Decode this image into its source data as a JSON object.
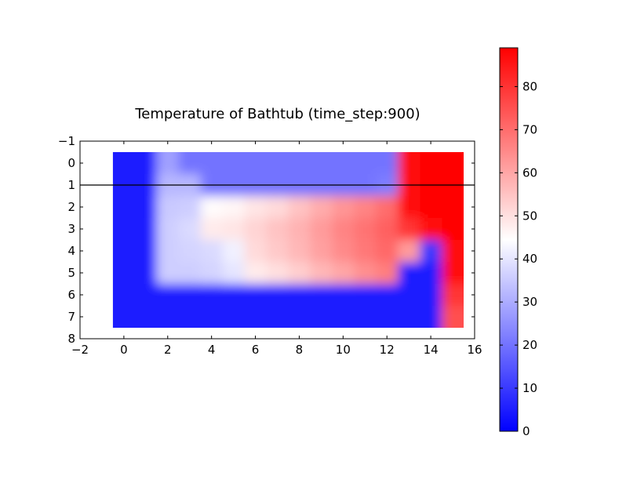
{
  "chart_data": {
    "type": "heatmap",
    "title": "Temperature of Bathtub (time_step:900)",
    "xlabel": "",
    "ylabel": "",
    "xlim": [
      -2,
      16
    ],
    "ylim": [
      8,
      -1
    ],
    "x_ticks": [
      -2,
      0,
      2,
      4,
      6,
      8,
      10,
      12,
      14,
      16
    ],
    "y_ticks": [
      -1,
      0,
      1,
      2,
      3,
      4,
      5,
      6,
      7,
      8
    ],
    "hline_y": 1,
    "grid": false,
    "colormap": {
      "name": "bwr",
      "low": "#0000ff",
      "mid": "#ffffff",
      "high": "#ff0000",
      "vmin": 0,
      "vmax": 89
    },
    "colorbar_ticks": [
      0,
      10,
      20,
      30,
      40,
      50,
      60,
      70,
      80
    ],
    "values": [
      [
        5,
        5,
        28,
        20,
        20,
        20,
        20,
        20,
        20,
        20,
        20,
        20,
        20,
        86,
        88,
        88
      ],
      [
        5,
        5,
        32,
        32,
        20,
        20,
        20,
        20,
        20,
        20,
        20,
        20,
        22,
        86,
        88,
        88
      ],
      [
        5,
        5,
        35,
        36,
        45,
        46,
        49,
        51,
        55,
        59,
        63,
        66,
        70,
        86,
        88,
        88
      ],
      [
        5,
        5,
        36,
        38,
        48,
        49,
        52,
        55,
        58,
        62,
        66,
        69,
        72,
        80,
        86,
        88
      ],
      [
        5,
        5,
        36,
        37,
        38,
        42,
        51,
        54,
        57,
        61,
        65,
        68,
        71,
        62,
        10,
        86
      ],
      [
        5,
        5,
        36,
        36,
        37,
        40,
        48,
        50,
        53,
        57,
        60,
        64,
        67,
        5,
        5,
        86
      ],
      [
        5,
        5,
        5,
        5,
        5,
        5,
        5,
        5,
        5,
        5,
        5,
        5,
        5,
        5,
        5,
        80
      ],
      [
        5,
        5,
        5,
        5,
        5,
        5,
        5,
        5,
        5,
        5,
        5,
        5,
        5,
        5,
        5,
        75
      ]
    ]
  }
}
